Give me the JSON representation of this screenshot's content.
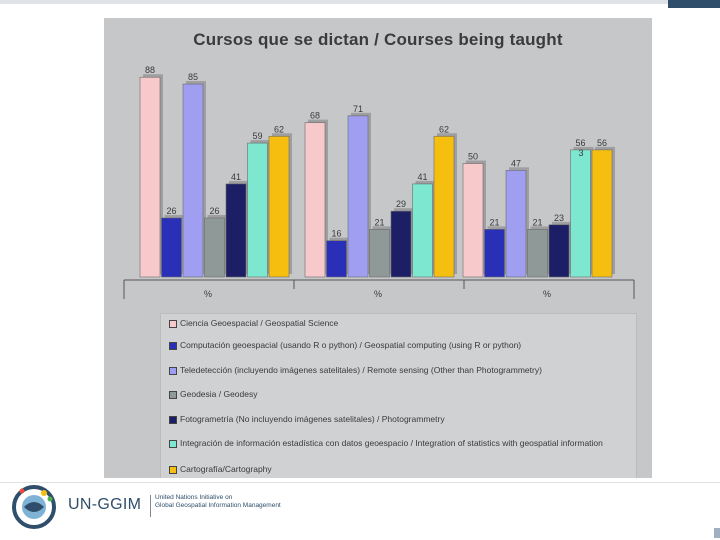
{
  "slide": {
    "title": "Cursos que se dictan   /    Courses being taught"
  },
  "chart_data": {
    "type": "bar",
    "title": "Cursos que se dictan   /    Courses being taught",
    "categories": [
      "%",
      "%",
      "%"
    ],
    "ylim": [
      0,
      100
    ],
    "grid": false,
    "legend": "bottom",
    "series": [
      {
        "name": "Ciencia Geoespacial / Geospatial Science",
        "color": "#f7c9cb",
        "values": [
          88,
          68,
          50
        ]
      },
      {
        "name": "Computación geoespacial (usando R o python) / Geospatial computing (using R or python)",
        "color": "#2a2fb7",
        "values": [
          26,
          16,
          21
        ]
      },
      {
        "name": "Teledetección (incluyendo imágenes satelitales) / Remote sensing (Other than Photogrammetry)",
        "color": "#9f9ef0",
        "values": [
          85,
          71,
          47
        ]
      },
      {
        "name": "Geodesia / Geodesy",
        "color": "#8f9a98",
        "values": [
          26,
          21,
          21
        ]
      },
      {
        "name": "Fotogrametría (No incluyendo imágenes satelitales) / Photogrammetry",
        "color": "#1c1f66",
        "values": [
          41,
          29,
          23
        ]
      },
      {
        "name": "Integración de información estadística con datos geoespacio / Integration of statistics with geospatial information",
        "color": "#7de8cf",
        "values": [
          59,
          41,
          56
        ]
      },
      {
        "name": "Cartografía/Cartography",
        "color": "#f6bf10",
        "values": [
          62,
          62,
          56
        ]
      }
    ],
    "extra_labels": {
      "third_group_hidden": "3"
    }
  },
  "footer": {
    "brand": "UN-GGIM",
    "subtitle_line1": "United Nations Initiative on",
    "subtitle_line2": "Global Geospatial Information Management"
  },
  "colors": {
    "panel": "#c6c7c9",
    "brand": "#2f4e6b"
  }
}
